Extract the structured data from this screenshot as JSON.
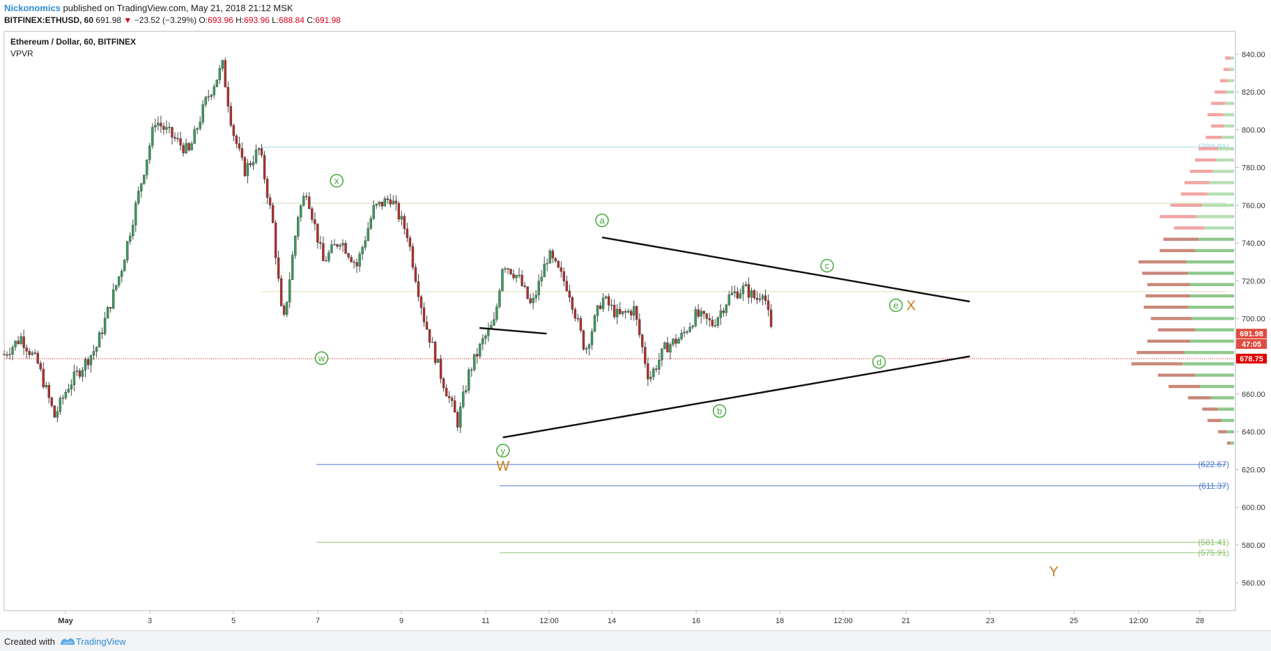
{
  "header": {
    "author": "Nickonomics",
    "published": "published on TradingView.com, May 21, 2018 21:12 MSK",
    "symbol": "BITFINEX:ETHUSD, 60",
    "last": "691.98",
    "change_arrow": "▼",
    "change": "−23.52 (−3.29%)",
    "o_label": "O:",
    "o": "693.96",
    "h_label": "H:",
    "h": "693.96",
    "l_label": "L:",
    "l": "688.84",
    "c_label": "C:",
    "c": "691.98"
  },
  "legend": {
    "title": "Ethereum / Dollar, 60, BITFINEX",
    "indicator": "VPVR"
  },
  "footer": {
    "created_with": "Created with",
    "brand": "TradingView"
  },
  "chart_data": {
    "type": "candlestick",
    "y_ticks": [
      560,
      580,
      600,
      620,
      640,
      660,
      680,
      700,
      720,
      740,
      760,
      780,
      800,
      820,
      840
    ],
    "ylim": [
      550,
      845
    ],
    "x_ticks": [
      "May",
      "3",
      "5",
      "7",
      "9",
      "11",
      "12:00",
      "14",
      "16",
      "18",
      "12:00",
      "21",
      "23",
      "25",
      "12:00",
      "28"
    ],
    "price_path": [
      {
        "day": 0,
        "price": 681
      },
      {
        "day": 1,
        "price": 690
      },
      {
        "day": 2,
        "price": 676
      },
      {
        "day": 3,
        "price": 648
      },
      {
        "day": 3.8,
        "price": 664
      },
      {
        "day": 5.5,
        "price": 685
      },
      {
        "day": 7,
        "price": 727
      },
      {
        "day": 9,
        "price": 805
      },
      {
        "day": 11,
        "price": 788
      },
      {
        "day": 12,
        "price": 815
      },
      {
        "day": 13,
        "price": 834
      },
      {
        "day": 13.6,
        "price": 800
      },
      {
        "day": 14.3,
        "price": 778
      },
      {
        "day": 15.2,
        "price": 790
      },
      {
        "day": 16,
        "price": 750
      },
      {
        "day": 16.6,
        "price": 695
      },
      {
        "day": 17.5,
        "price": 755
      },
      {
        "day": 18,
        "price": 768
      },
      {
        "day": 19,
        "price": 730
      },
      {
        "day": 20,
        "price": 742
      },
      {
        "day": 21,
        "price": 728
      },
      {
        "day": 22,
        "price": 758
      },
      {
        "day": 23,
        "price": 764
      },
      {
        "day": 24,
        "price": 745
      },
      {
        "day": 25,
        "price": 700
      },
      {
        "day": 26,
        "price": 670
      },
      {
        "day": 27,
        "price": 645
      },
      {
        "day": 27.7,
        "price": 672
      },
      {
        "day": 28.5,
        "price": 688
      },
      {
        "day": 29.2,
        "price": 698
      },
      {
        "day": 29.7,
        "price": 730
      },
      {
        "day": 30.6,
        "price": 722
      },
      {
        "day": 31.4,
        "price": 706
      },
      {
        "day": 32.4,
        "price": 734
      },
      {
        "day": 33.6,
        "price": 716
      },
      {
        "day": 34.6,
        "price": 683
      },
      {
        "day": 35.6,
        "price": 711
      },
      {
        "day": 36.6,
        "price": 701
      },
      {
        "day": 37.5,
        "price": 705
      },
      {
        "day": 38.4,
        "price": 668
      },
      {
        "day": 39.4,
        "price": 685
      },
      {
        "day": 40.3,
        "price": 690
      },
      {
        "day": 41.2,
        "price": 702
      },
      {
        "day": 42.2,
        "price": 697
      },
      {
        "day": 43.2,
        "price": 712
      },
      {
        "day": 44.1,
        "price": 716
      },
      {
        "day": 44.8,
        "price": 710
      },
      {
        "day": 45.2,
        "price": 716
      },
      {
        "day": 45.7,
        "price": 692
      }
    ],
    "volume_profile": [
      {
        "price": 838,
        "total": 10,
        "up": 4
      },
      {
        "price": 832,
        "total": 12,
        "up": 5
      },
      {
        "price": 826,
        "total": 16,
        "up": 7
      },
      {
        "price": 820,
        "total": 22,
        "up": 9
      },
      {
        "price": 814,
        "total": 26,
        "up": 10
      },
      {
        "price": 808,
        "total": 30,
        "up": 12
      },
      {
        "price": 802,
        "total": 26,
        "up": 11
      },
      {
        "price": 796,
        "total": 32,
        "up": 14
      },
      {
        "price": 790,
        "total": 40,
        "up": 18
      },
      {
        "price": 784,
        "total": 44,
        "up": 20
      },
      {
        "price": 778,
        "total": 50,
        "up": 24
      },
      {
        "price": 772,
        "total": 56,
        "up": 28
      },
      {
        "price": 766,
        "total": 60,
        "up": 30
      },
      {
        "price": 760,
        "total": 72,
        "up": 36
      },
      {
        "price": 754,
        "total": 84,
        "up": 42
      },
      {
        "price": 748,
        "total": 68,
        "up": 34
      },
      {
        "price": 742,
        "total": 80,
        "up": 40
      },
      {
        "price": 736,
        "total": 84,
        "up": 44
      },
      {
        "price": 730,
        "total": 108,
        "up": 54
      },
      {
        "price": 724,
        "total": 104,
        "up": 52
      },
      {
        "price": 718,
        "total": 98,
        "up": 50
      },
      {
        "price": 712,
        "total": 100,
        "up": 50
      },
      {
        "price": 706,
        "total": 102,
        "up": 52
      },
      {
        "price": 700,
        "total": 94,
        "up": 48
      },
      {
        "price": 694,
        "total": 86,
        "up": 44
      },
      {
        "price": 688,
        "total": 98,
        "up": 50
      },
      {
        "price": 682,
        "total": 110,
        "up": 56
      },
      {
        "price": 676,
        "total": 116,
        "up": 58
      },
      {
        "price": 670,
        "total": 86,
        "up": 44
      },
      {
        "price": 664,
        "total": 74,
        "up": 38
      },
      {
        "price": 658,
        "total": 52,
        "up": 26
      },
      {
        "price": 652,
        "total": 36,
        "up": 18
      },
      {
        "price": 646,
        "total": 30,
        "up": 14
      },
      {
        "price": 640,
        "total": 18,
        "up": 8
      },
      {
        "price": 634,
        "total": 8,
        "up": 4
      }
    ],
    "horizontal_levels": [
      {
        "price": 790.91,
        "label": "(790.91)",
        "color": "#9fd0e8",
        "x0_day": 15.3
      },
      {
        "price": 761.1,
        "label": "",
        "color": "#c9dcb0",
        "x0_day": 15.3
      },
      {
        "price": 714.3,
        "label": "",
        "color": "#e0ddb6",
        "x0_day": 15.3
      },
      {
        "price": 622.67,
        "label": "(622.67)",
        "color": "#4a78c8",
        "x0_day": 18.6
      },
      {
        "price": 611.37,
        "label": "(611.37)",
        "color": "#4a78c8",
        "x0_day": 29.5
      },
      {
        "price": 581.41,
        "label": "(581.41)",
        "color": "#8cc06a",
        "x0_day": 18.6
      },
      {
        "price": 575.91,
        "label": "(575.91)",
        "color": "#8cc06a",
        "x0_day": 29.5
      }
    ],
    "trendlines": [
      {
        "from": {
          "day": 35.6,
          "price": 743
        },
        "to": {
          "day": 57.5,
          "price": 709
        }
      },
      {
        "from": {
          "day": 29.7,
          "price": 637
        },
        "to": {
          "day": 57.5,
          "price": 680
        }
      },
      {
        "from": {
          "day": 28.3,
          "price": 695
        },
        "to": {
          "day": 32.3,
          "price": 692
        }
      }
    ],
    "wave_labels": [
      {
        "text": "x",
        "day": 19.8,
        "price": 773,
        "circled": true,
        "color": "#43a838"
      },
      {
        "text": "w",
        "day": 18.9,
        "price": 679,
        "circled": true,
        "color": "#43a838"
      },
      {
        "text": "a",
        "day": 35.6,
        "price": 752,
        "circled": true,
        "color": "#43a838"
      },
      {
        "text": "y",
        "day": 29.7,
        "price": 630,
        "circled": true,
        "color": "#43a838"
      },
      {
        "text": "b",
        "day": 42.6,
        "price": 651,
        "circled": true,
        "color": "#43a838"
      },
      {
        "text": "c",
        "day": 49.0,
        "price": 728,
        "circled": true,
        "color": "#43a838"
      },
      {
        "text": "d",
        "day": 52.1,
        "price": 677,
        "circled": true,
        "color": "#43a838"
      },
      {
        "text": "e",
        "day": 53.1,
        "price": 707,
        "circled": true,
        "color": "#43a838"
      },
      {
        "text": "X",
        "day": 54.0,
        "price": 707,
        "circled": false,
        "color": "#c9781a"
      },
      {
        "text": "W",
        "day": 29.7,
        "price": 622,
        "circled": false,
        "color": "#c9781a"
      },
      {
        "text": "Y",
        "day": 62.5,
        "price": 566,
        "circled": false,
        "color": "#c9781a"
      }
    ],
    "price_markers": [
      {
        "price": 691.98,
        "label": "691.98",
        "color": "#e04a3f"
      },
      {
        "price": 686.5,
        "label": "47:05",
        "color": "#e04a3f"
      },
      {
        "price": 678.75,
        "label": "678.75",
        "color": "#e00000"
      }
    ],
    "last_price_line": 678.75,
    "colors": {
      "up": "#3a9c5e",
      "down": "#b0302a",
      "wick": "#444444",
      "vp_up": "#8fc88b",
      "vp_down": "#c9877a",
      "vp_upper_up": "#b7dfb2",
      "vp_upper_down": "#f4a3a3"
    }
  }
}
